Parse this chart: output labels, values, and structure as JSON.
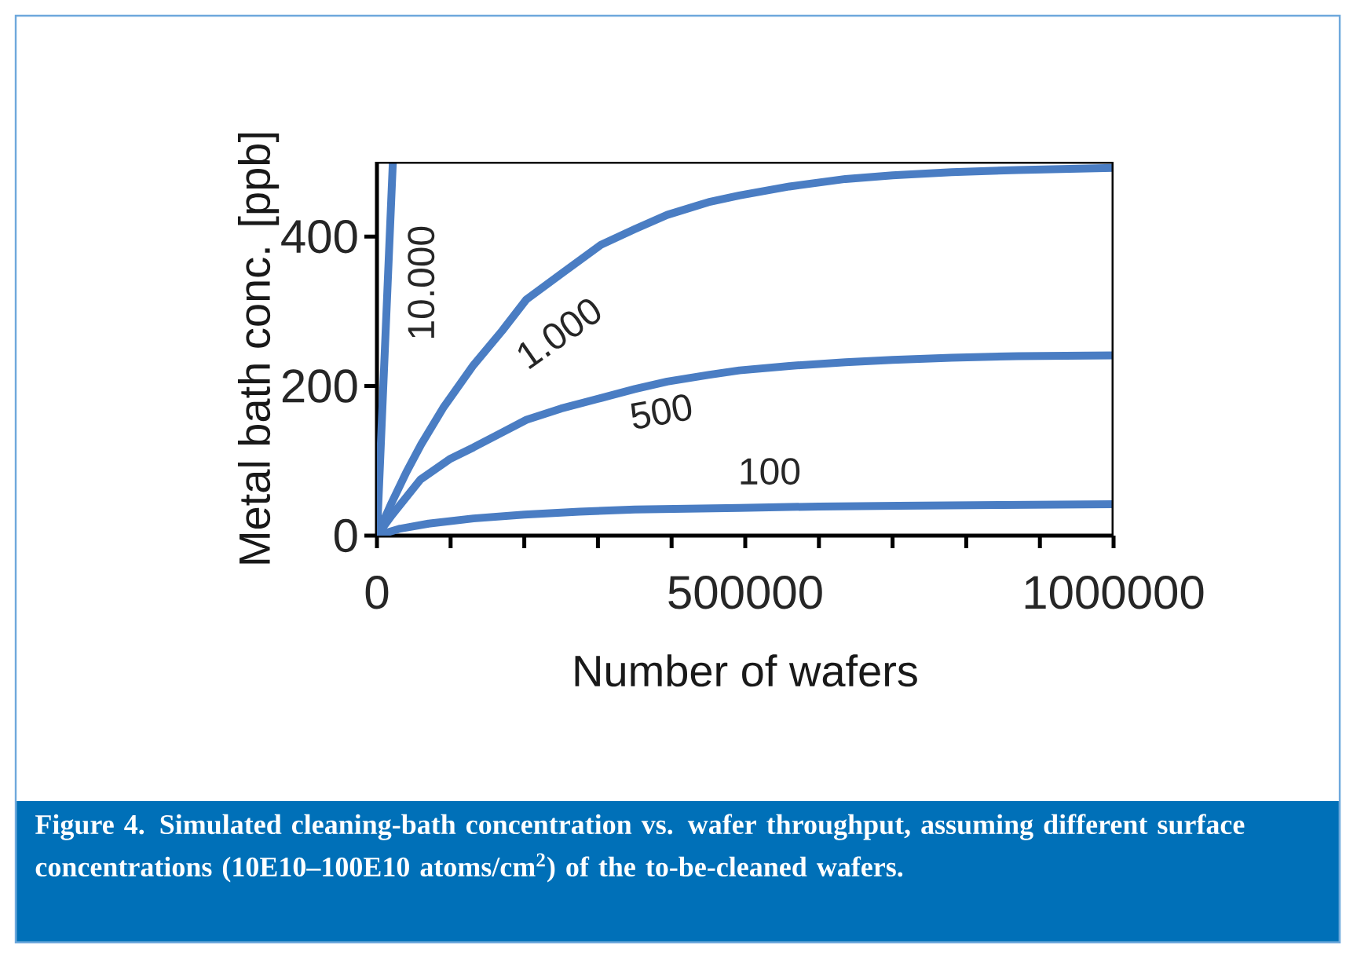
{
  "chart_data": {
    "type": "line",
    "xlabel": "Number of wafers",
    "ylabel": "Metal bath conc. [ppb]",
    "xlim": [
      0,
      1000000
    ],
    "ylim": [
      0,
      500
    ],
    "xticks": [
      0,
      {
        "value": 100000,
        "label": null
      },
      {
        "value": 200000,
        "label": null
      },
      {
        "value": 300000,
        "label": null
      },
      {
        "value": 400000,
        "label": null
      },
      500000,
      {
        "value": 600000,
        "label": null
      },
      {
        "value": 700000,
        "label": null
      },
      {
        "value": 800000,
        "label": null
      },
      {
        "value": 900000,
        "label": null
      },
      1000000
    ],
    "yticks": [
      0,
      200,
      400
    ],
    "line_style": "solid",
    "series": [
      {
        "name": "10.000",
        "color": "#4a7dc3",
        "x": [
          0,
          10800,
          21600
        ],
        "values": [
          0,
          250,
          500
        ]
      },
      {
        "name": "1.000",
        "color": "#4a7dc3",
        "x": [
          0,
          20000,
          40000,
          60000,
          90000,
          131000,
          170000,
          203000,
          250000,
          304000,
          350000,
          394000,
          450000,
          492000,
          560000,
          636000,
          700000,
          780000,
          870000,
          1000000
        ],
        "values": [
          0,
          44,
          85,
          122,
          171,
          228,
          274,
          316,
          350,
          389,
          410,
          429,
          446,
          455,
          467,
          477,
          482,
          486,
          489,
          492
        ]
      },
      {
        "name": "500",
        "color": "#4a7dc3",
        "x": [
          0,
          20000,
          59000,
          100000,
          131000,
          170000,
          203000,
          250000,
          304000,
          350000,
          394000,
          450000,
          492000,
          560000,
          636000,
          700000,
          780000,
          870000,
          1000000
        ],
        "values": [
          0,
          27,
          75,
          103,
          118,
          138,
          155,
          170,
          184,
          196,
          206,
          215,
          221,
          227,
          232,
          235,
          238,
          240,
          241
        ]
      },
      {
        "name": "100",
        "color": "#4a7dc3",
        "x": [
          0,
          30000,
          70000,
          131000,
          200000,
          275000,
          350000,
          492000,
          600000,
          708000,
          850000,
          1000000
        ],
        "values": [
          0,
          9,
          16,
          23,
          28,
          32,
          35,
          37,
          39,
          40,
          41,
          42
        ]
      }
    ],
    "annotations": [
      "Figure 4. Simulated cleaning-bath concentration vs. wafer throughput, assuming different surface concentrations (10E10–100E10 atoms/cm$^{2}$) of the to-be-cleaned wafers."
    ]
  }
}
